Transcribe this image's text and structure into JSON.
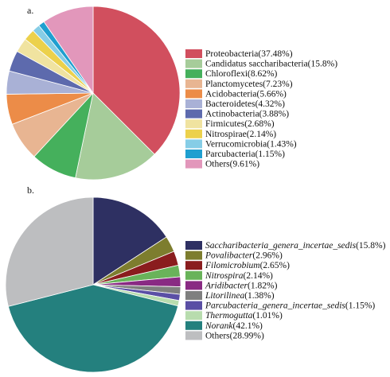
{
  "chart_data": [
    {
      "type": "pie",
      "panel_label": "a.",
      "slices": [
        {
          "label": "Proteobacteria(37.48%)",
          "value": 37.48,
          "color": "#d14f5e"
        },
        {
          "label": "Candidatus saccharibacteria(15.8%)",
          "value": 15.8,
          "color": "#a6cc9a"
        },
        {
          "label": "Chloroflexi(8.62%)",
          "value": 8.62,
          "color": "#45b05c"
        },
        {
          "label": "Planctomycetes(7.23%)",
          "value": 7.23,
          "color": "#e8b592"
        },
        {
          "label": "Acidobacteria(5.66%)",
          "value": 5.66,
          "color": "#ec8c48"
        },
        {
          "label": "Bacteroidetes(4.32%)",
          "value": 4.32,
          "color": "#a9b1d6"
        },
        {
          "label": "Actinobacteria(3.88%)",
          "value": 3.88,
          "color": "#5d6aad"
        },
        {
          "label": "Firmicutes(2.68%)",
          "value": 2.68,
          "color": "#f0e3a0"
        },
        {
          "label": "Nitrospirae(2.14%)",
          "value": 2.14,
          "color": "#ecd14c"
        },
        {
          "label": "Verrucomicrobia(1.43%)",
          "value": 1.43,
          "color": "#86cde6"
        },
        {
          "label": "Parcubacteria(1.15%)",
          "value": 1.15,
          "color": "#1f9fd0"
        },
        {
          "label": "Others(9.61%)",
          "value": 9.61,
          "color": "#e297bb"
        }
      ]
    },
    {
      "type": "pie",
      "panel_label": "b.",
      "slices": [
        {
          "label": "Saccharibacteria_genera_incertae_sedis(15.8%)",
          "value": 15.8,
          "color": "#2e3062",
          "italic_part": "Saccharibacteria_genera_incertae_sedis",
          "rest": "(15.8%)"
        },
        {
          "label": "Povalibacter(2.96%)",
          "value": 2.96,
          "color": "#7d7d2e",
          "italic_part": "Povalibacter",
          "rest": "(2.96%)"
        },
        {
          "label": "Filomicrobium(2.65%)",
          "value": 2.65,
          "color": "#8a1d1e",
          "italic_part": "Filomicrobium",
          "rest": "(2.65%)"
        },
        {
          "label": "Nitrospira(2.14%)",
          "value": 2.14,
          "color": "#69b35a",
          "italic_part": "Nitrospira",
          "rest": "(2.14%)"
        },
        {
          "label": "Aridibacter(1.82%)",
          "value": 1.82,
          "color": "#892a83",
          "italic_part": "Aridibacter",
          "rest": "(1.82%)"
        },
        {
          "label": "Litorilinea(1.38%)",
          "value": 1.38,
          "color": "#7f7f7f",
          "italic_part": "Litorilinea",
          "rest": "(1.38%)"
        },
        {
          "label": "Parcubacteria_genera_incertae_sedis(1.15%)",
          "value": 1.15,
          "color": "#5a4fa5",
          "italic_part": "Parcubacteria_genera_incertae_sedis",
          "rest": "(1.15%)"
        },
        {
          "label": "Thermogutta(1.01%)",
          "value": 1.01,
          "color": "#b8dcae",
          "italic_part": "Thermogutta",
          "rest": "(1.01%)"
        },
        {
          "label": "Norank(42.1%)",
          "value": 42.1,
          "color": "#24807e",
          "italic_part": "Norank",
          "rest": "(42.1%)"
        },
        {
          "label": "Others(28.99%)",
          "value": 28.99,
          "color": "#bdbec0",
          "italic_part": "",
          "rest": "Others(28.99%)"
        }
      ]
    }
  ]
}
